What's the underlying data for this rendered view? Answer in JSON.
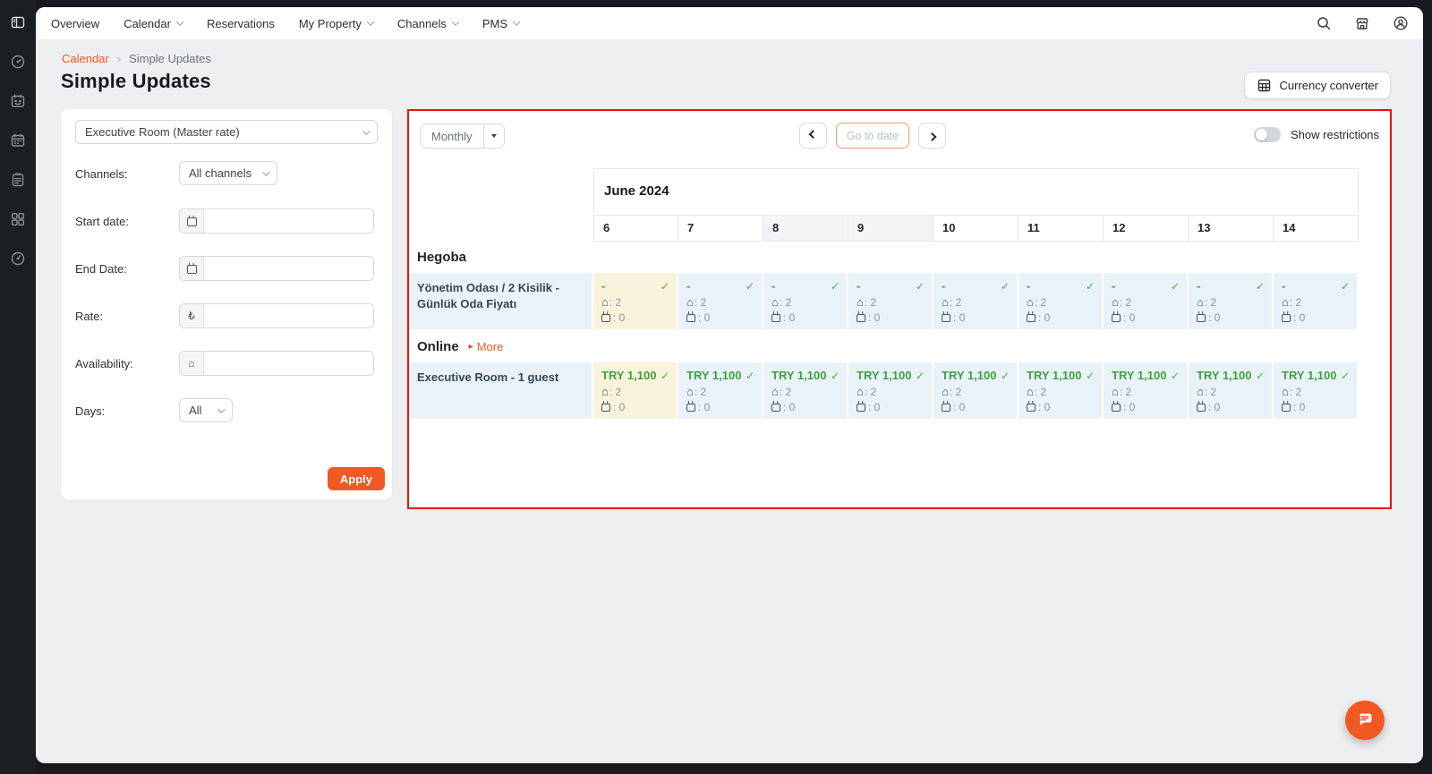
{
  "nav": {
    "items": [
      {
        "label": "Overview",
        "dropdown": false
      },
      {
        "label": "Calendar",
        "dropdown": true
      },
      {
        "label": "Reservations",
        "dropdown": false
      },
      {
        "label": "My Property",
        "dropdown": true
      },
      {
        "label": "Channels",
        "dropdown": true
      },
      {
        "label": "PMS",
        "dropdown": true
      }
    ],
    "right_icons": [
      "search",
      "marketplace",
      "account"
    ]
  },
  "sidebar": {
    "icons": [
      "collapse-panel",
      "dashboard-speedometer",
      "bookings-calendar",
      "calendar-grid",
      "reports-clipboard",
      "integrations-modules",
      "performance-gauge"
    ]
  },
  "breadcrumb": {
    "parent": "Calendar",
    "separator": "›",
    "current": "Simple Updates"
  },
  "page": {
    "title": "Simple Updates"
  },
  "toolbar": {
    "currency_button_label": "Currency converter"
  },
  "form": {
    "room_select_value": "Executive Room (Master rate)",
    "channels_label": "Channels:",
    "channels_value": "All channels",
    "start_date_label": "Start date:",
    "start_date_value": "",
    "end_date_label": "End Date:",
    "end_date_value": "",
    "rate_label": "Rate:",
    "rate_prefix": "₺",
    "rate_value": "",
    "availability_label": "Availability:",
    "availability_value": "",
    "days_label": "Days:",
    "days_value": "All",
    "apply_label": "Apply"
  },
  "calendar": {
    "view_select": {
      "value": "Monthly"
    },
    "goto": {
      "placeholder": "Go to date"
    },
    "restrictions": {
      "label": "Show restrictions",
      "enabled": false
    },
    "month_label": "June 2024",
    "days": [
      "6",
      "7",
      "8",
      "9",
      "10",
      "11",
      "12",
      "13",
      "14"
    ],
    "weekend_days": [
      "8",
      "9"
    ],
    "today_day": "6",
    "sections": [
      {
        "name": "Hegoba",
        "more_label": null,
        "rows": [
          {
            "label": "Yönetim Odası / 2 Kisilik - Günlük Oda Fiyatı",
            "cells": [
              {
                "price": "-",
                "availability": "2",
                "booked": "0",
                "synced": true
              },
              {
                "price": "-",
                "availability": "2",
                "booked": "0",
                "synced": true
              },
              {
                "price": "-",
                "availability": "2",
                "booked": "0",
                "synced": true
              },
              {
                "price": "-",
                "availability": "2",
                "booked": "0",
                "synced": true
              },
              {
                "price": "-",
                "availability": "2",
                "booked": "0",
                "synced": true
              },
              {
                "price": "-",
                "availability": "2",
                "booked": "0",
                "synced": true
              },
              {
                "price": "-",
                "availability": "2",
                "booked": "0",
                "synced": true
              },
              {
                "price": "-",
                "availability": "2",
                "booked": "0",
                "synced": true
              },
              {
                "price": "-",
                "availability": "2",
                "booked": "0",
                "synced": true
              }
            ]
          }
        ]
      },
      {
        "name": "Online",
        "more_label": "More",
        "rows": [
          {
            "label": "Executive Room - 1 guest",
            "cells": [
              {
                "price": "TRY 1,100",
                "availability": "2",
                "booked": "0",
                "synced": true
              },
              {
                "price": "TRY 1,100",
                "availability": "2",
                "booked": "0",
                "synced": true
              },
              {
                "price": "TRY 1,100",
                "availability": "2",
                "booked": "0",
                "synced": true
              },
              {
                "price": "TRY 1,100",
                "availability": "2",
                "booked": "0",
                "synced": true
              },
              {
                "price": "TRY 1,100",
                "availability": "2",
                "booked": "0",
                "synced": true
              },
              {
                "price": "TRY 1,100",
                "availability": "2",
                "booked": "0",
                "synced": true
              },
              {
                "price": "TRY 1,100",
                "availability": "2",
                "booked": "0",
                "synced": true
              },
              {
                "price": "TRY 1,100",
                "availability": "2",
                "booked": "0",
                "synced": true
              },
              {
                "price": "TRY 1,100",
                "availability": "2",
                "booked": "0",
                "synced": true
              }
            ]
          }
        ]
      }
    ]
  },
  "icon_glyphs": {
    "home": "⌂",
    "check": "✓",
    "more_arrow": "▸"
  },
  "colors": {
    "accent_orange": "#f15822",
    "highlight_red_border": "#f80f00",
    "price_green": "#3ea13d",
    "check_green": "#55ab3f",
    "row_bg_blue": "#e9f2f8",
    "today_bg_cream": "#f9f3dc",
    "sidebar_dark": "#1b1e22",
    "page_bg": "#edeff1"
  }
}
